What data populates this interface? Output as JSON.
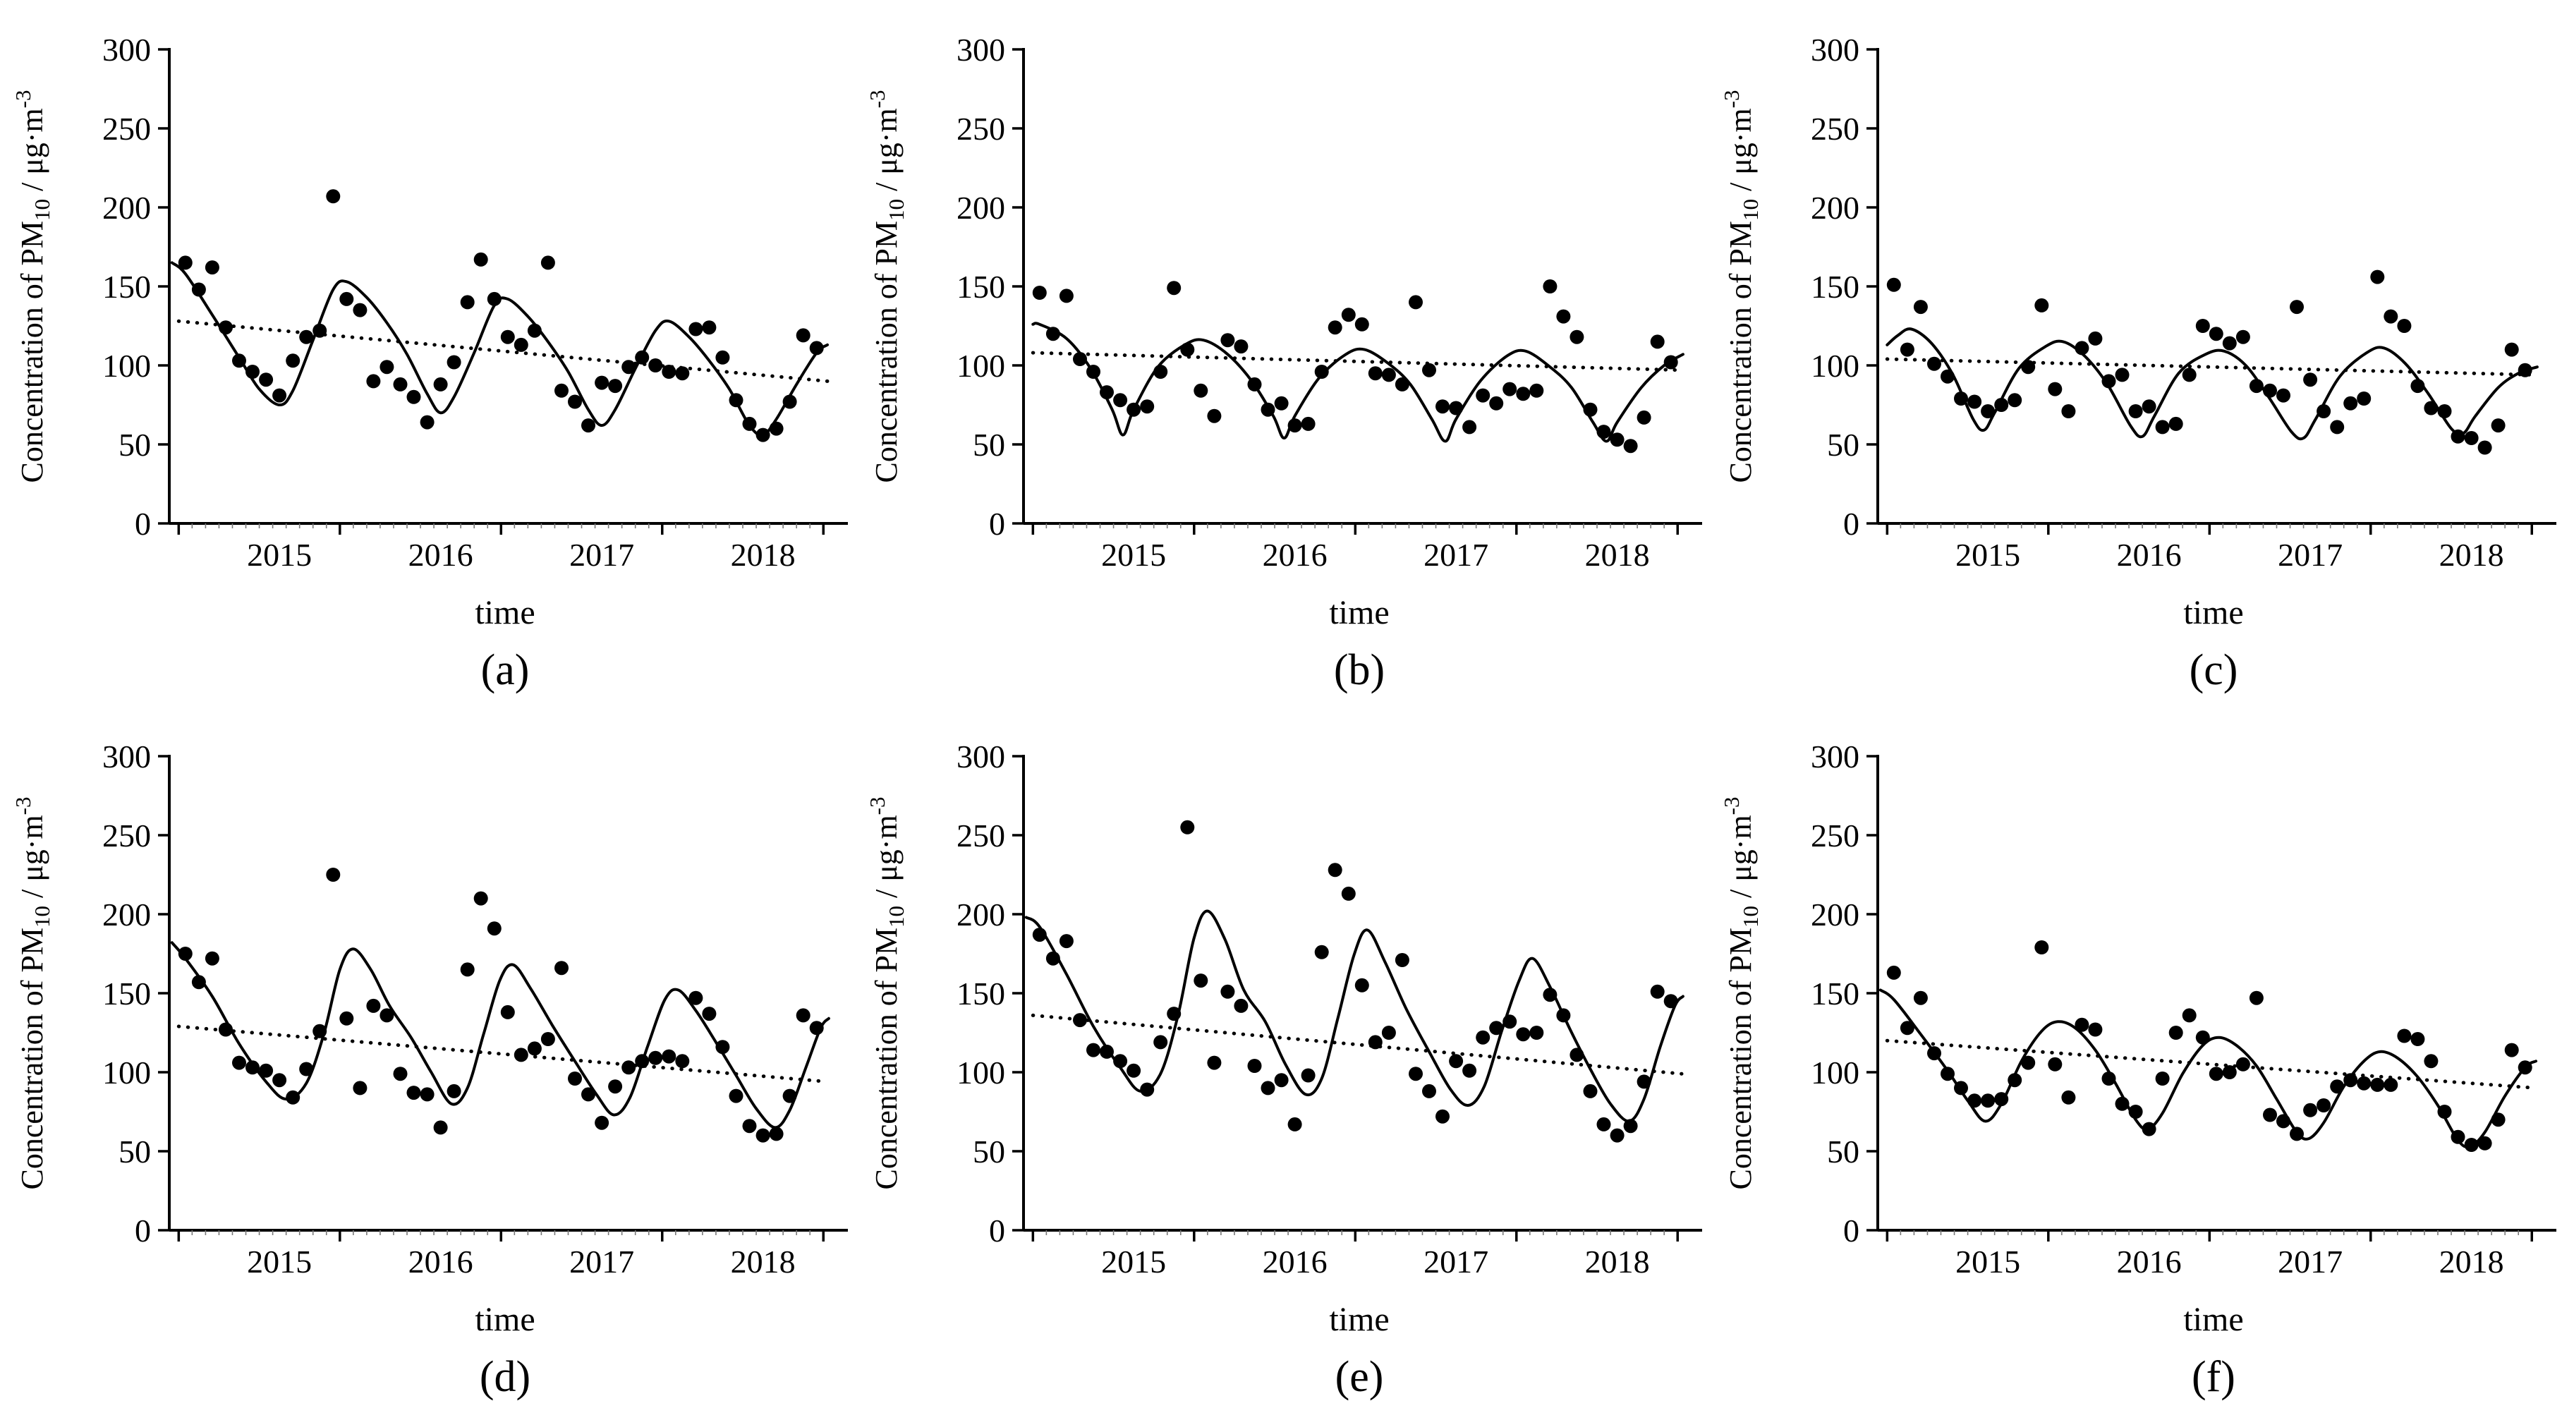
{
  "figure": {
    "background": "#ffffff",
    "ink": "#000000",
    "minor_tick_color": "#777777",
    "xlabel": "time",
    "ylabel_parts": {
      "pre": "Concentration of PM",
      "sub": "10",
      "mid": " / μg·m",
      "sup": "-3"
    },
    "yticks": [
      0,
      50,
      100,
      150,
      200,
      250,
      300
    ],
    "ylim": [
      0,
      300
    ],
    "year_labels": [
      "2015",
      "2016",
      "2017",
      "2018"
    ],
    "grid": "off",
    "legend": "none"
  },
  "chart_data": [
    {
      "type": "scatter",
      "panel_label": "(a)",
      "x_unit": "monthly, Jan 2015 – Dec 2018 (index 0–47)",
      "ylabel": "Concentration of PM10 / μg·m-3",
      "xlabel": "time",
      "points": [
        165,
        148,
        162,
        124,
        103,
        96,
        91,
        81,
        103,
        118,
        122,
        207,
        142,
        135,
        90,
        99,
        88,
        80,
        64,
        88,
        102,
        140,
        167,
        142,
        118,
        113,
        122,
        165,
        84,
        77,
        62,
        89,
        87,
        99,
        105,
        100,
        96,
        95,
        123,
        124,
        105,
        78,
        63,
        56,
        60,
        77,
        119,
        111
      ],
      "trend_line": {
        "start": 128,
        "end": 90
      },
      "fit_curve": [
        [
          -1,
          165
        ],
        [
          0,
          158
        ],
        [
          2,
          132
        ],
        [
          4,
          105
        ],
        [
          5.5,
          85
        ],
        [
          7,
          75
        ],
        [
          8,
          84
        ],
        [
          9.5,
          116
        ],
        [
          11,
          148
        ],
        [
          12,
          153
        ],
        [
          13.5,
          143
        ],
        [
          15,
          127
        ],
        [
          16.5,
          107
        ],
        [
          18,
          82
        ],
        [
          19,
          70
        ],
        [
          20,
          80
        ],
        [
          21.5,
          108
        ],
        [
          23,
          138
        ],
        [
          24,
          142
        ],
        [
          25.5,
          131
        ],
        [
          27,
          115
        ],
        [
          28.5,
          96
        ],
        [
          30,
          72
        ],
        [
          31,
          62
        ],
        [
          32,
          72
        ],
        [
          33.5,
          98
        ],
        [
          35,
          122
        ],
        [
          36,
          128
        ],
        [
          37.5,
          118
        ],
        [
          39,
          103
        ],
        [
          40.5,
          85
        ],
        [
          42,
          62
        ],
        [
          43,
          56
        ],
        [
          44,
          66
        ],
        [
          45.5,
          88
        ],
        [
          47,
          108
        ],
        [
          47.8,
          113
        ]
      ]
    },
    {
      "type": "scatter",
      "panel_label": "(b)",
      "x_unit": "monthly, Jan 2015 – Dec 2018 (index 0–47)",
      "ylabel": "Concentration of PM10 / μg·m-3",
      "xlabel": "time",
      "points": [
        146,
        120,
        144,
        104,
        96,
        83,
        78,
        72,
        74,
        96,
        149,
        110,
        84,
        68,
        116,
        112,
        88,
        72,
        76,
        62,
        63,
        96,
        124,
        132,
        126,
        95,
        94,
        88,
        140,
        97,
        74,
        73,
        61,
        81,
        76,
        85,
        82,
        84,
        150,
        131,
        118,
        72,
        58,
        53,
        49,
        67,
        115,
        102
      ],
      "trend_line": {
        "start": 108,
        "end": 97
      },
      "fit_curve": [
        [
          -0.5,
          126
        ],
        [
          0,
          126
        ],
        [
          2,
          117
        ],
        [
          3.8,
          98
        ],
        [
          5.4,
          72
        ],
        [
          6.2,
          56
        ],
        [
          7,
          72
        ],
        [
          8.8,
          99
        ],
        [
          10.8,
          113
        ],
        [
          12.2,
          116
        ],
        [
          14,
          107
        ],
        [
          15.8,
          90
        ],
        [
          17.4,
          68
        ],
        [
          18.2,
          54
        ],
        [
          19,
          68
        ],
        [
          20.8,
          92
        ],
        [
          22.8,
          107
        ],
        [
          24.2,
          110
        ],
        [
          26,
          101
        ],
        [
          27.6,
          88
        ],
        [
          29.2,
          66
        ],
        [
          30.2,
          52
        ],
        [
          31,
          66
        ],
        [
          32.8,
          90
        ],
        [
          34.8,
          106
        ],
        [
          36.2,
          109
        ],
        [
          38,
          99
        ],
        [
          39.6,
          86
        ],
        [
          41.2,
          64
        ],
        [
          42.2,
          52
        ],
        [
          43,
          64
        ],
        [
          44.8,
          86
        ],
        [
          46.5,
          100
        ],
        [
          47.9,
          107
        ]
      ]
    },
    {
      "type": "scatter",
      "panel_label": "(c)",
      "x_unit": "monthly, Jan 2015 – Dec 2018 (index 0–47)",
      "ylabel": "Concentration of PM10 / μg·m-3",
      "xlabel": "time",
      "points": [
        151,
        110,
        137,
        101,
        93,
        79,
        77,
        71,
        75,
        78,
        99,
        138,
        85,
        71,
        111,
        117,
        90,
        94,
        71,
        74,
        61,
        63,
        94,
        125,
        120,
        114,
        118,
        87,
        84,
        81,
        137,
        91,
        71,
        61,
        76,
        79,
        156,
        131,
        125,
        87,
        73,
        71,
        55,
        54,
        48,
        62,
        110,
        97
      ],
      "trend_line": {
        "start": 104,
        "end": 94
      },
      "fit_curve": [
        [
          -0.5,
          113
        ],
        [
          0.3,
          119
        ],
        [
          1.3,
          123
        ],
        [
          2.8,
          114
        ],
        [
          4.4,
          94
        ],
        [
          5.9,
          66
        ],
        [
          6.7,
          59
        ],
        [
          7.5,
          70
        ],
        [
          9.3,
          98
        ],
        [
          11.3,
          112
        ],
        [
          12.6,
          115
        ],
        [
          14.2,
          106
        ],
        [
          15.9,
          88
        ],
        [
          17.6,
          62
        ],
        [
          18.5,
          55
        ],
        [
          19.4,
          68
        ],
        [
          21.2,
          95
        ],
        [
          23.2,
          107
        ],
        [
          24.6,
          109
        ],
        [
          26.2,
          100
        ],
        [
          27.9,
          80
        ],
        [
          29.6,
          58
        ],
        [
          30.5,
          54
        ],
        [
          31.4,
          66
        ],
        [
          33.2,
          93
        ],
        [
          35.2,
          108
        ],
        [
          36.5,
          111
        ],
        [
          38.1,
          101
        ],
        [
          39.8,
          82
        ],
        [
          41.5,
          60
        ],
        [
          42.4,
          57
        ],
        [
          43.3,
          68
        ],
        [
          45,
          86
        ],
        [
          46.5,
          95
        ],
        [
          47.9,
          99
        ]
      ]
    },
    {
      "type": "scatter",
      "panel_label": "(d)",
      "x_unit": "monthly, Jan 2015 – Dec 2018 (index 0–47)",
      "ylabel": "Concentration of PM10 / μg·m-3",
      "xlabel": "time",
      "points": [
        175,
        157,
        172,
        127,
        106,
        103,
        101,
        95,
        84,
        102,
        126,
        225,
        134,
        90,
        142,
        136,
        99,
        87,
        86,
        65,
        88,
        165,
        210,
        191,
        138,
        111,
        115,
        121,
        166,
        96,
        86,
        68,
        91,
        103,
        107,
        109,
        110,
        107,
        147,
        137,
        116,
        85,
        66,
        60,
        61,
        85,
        136,
        128
      ],
      "trend_line": {
        "start": 129,
        "end": 94
      },
      "fit_curve": [
        [
          -1,
          182
        ],
        [
          0,
          172
        ],
        [
          2,
          148
        ],
        [
          4,
          118
        ],
        [
          6,
          94
        ],
        [
          7.5,
          83
        ],
        [
          9,
          93
        ],
        [
          10.3,
          124
        ],
        [
          11.5,
          165
        ],
        [
          12.5,
          178
        ],
        [
          13.8,
          165
        ],
        [
          15.2,
          142
        ],
        [
          16.8,
          122
        ],
        [
          18.3,
          100
        ],
        [
          19.8,
          80
        ],
        [
          21,
          90
        ],
        [
          22.2,
          124
        ],
        [
          23.4,
          158
        ],
        [
          24.4,
          168
        ],
        [
          25.7,
          153
        ],
        [
          27.3,
          130
        ],
        [
          29,
          107
        ],
        [
          30.6,
          86
        ],
        [
          31.9,
          73
        ],
        [
          33.1,
          84
        ],
        [
          34.4,
          116
        ],
        [
          35.7,
          146
        ],
        [
          36.7,
          152
        ],
        [
          38,
          139
        ],
        [
          39.5,
          119
        ],
        [
          41,
          98
        ],
        [
          42.5,
          77
        ],
        [
          43.9,
          65
        ],
        [
          45,
          76
        ],
        [
          46.2,
          103
        ],
        [
          47.3,
          128
        ],
        [
          47.9,
          134
        ]
      ]
    },
    {
      "type": "scatter",
      "panel_label": "(e)",
      "x_unit": "monthly, Jan 2015 – Dec 2018 (index 0–47)",
      "ylabel": "Concentration of PM10 / μg·m-3",
      "xlabel": "time",
      "points": [
        187,
        172,
        183,
        133,
        114,
        113,
        107,
        101,
        89,
        119,
        137,
        255,
        158,
        106,
        151,
        142,
        104,
        90,
        95,
        67,
        98,
        176,
        228,
        213,
        155,
        119,
        125,
        171,
        99,
        88,
        72,
        107,
        101,
        122,
        128,
        132,
        124,
        125,
        149,
        136,
        111,
        88,
        67,
        60,
        66,
        94,
        151,
        145
      ],
      "trend_line": {
        "start": 136,
        "end": 99
      },
      "fit_curve": [
        [
          -1,
          198
        ],
        [
          0,
          192
        ],
        [
          2,
          162
        ],
        [
          4,
          129
        ],
        [
          6,
          103
        ],
        [
          7.5,
          88
        ],
        [
          9,
          99
        ],
        [
          10.3,
          136
        ],
        [
          11.5,
          185
        ],
        [
          12.5,
          202
        ],
        [
          13.8,
          184
        ],
        [
          15.2,
          152
        ],
        [
          16.8,
          132
        ],
        [
          18.3,
          105
        ],
        [
          19.8,
          86
        ],
        [
          21,
          96
        ],
        [
          22.2,
          134
        ],
        [
          23.4,
          174
        ],
        [
          24.4,
          190
        ],
        [
          25.7,
          170
        ],
        [
          27.3,
          140
        ],
        [
          29,
          113
        ],
        [
          30.6,
          89
        ],
        [
          31.9,
          79
        ],
        [
          33.1,
          91
        ],
        [
          34.4,
          126
        ],
        [
          35.7,
          158
        ],
        [
          36.7,
          172
        ],
        [
          38,
          154
        ],
        [
          39.5,
          127
        ],
        [
          41,
          102
        ],
        [
          42.5,
          80
        ],
        [
          43.9,
          69
        ],
        [
          45,
          83
        ],
        [
          46.2,
          116
        ],
        [
          47.3,
          142
        ],
        [
          47.9,
          148
        ]
      ]
    },
    {
      "type": "scatter",
      "panel_label": "(f)",
      "x_unit": "monthly, Jan 2015 – Dec 2018 (index 0–47)",
      "ylabel": "Concentration of PM10 / μg·m-3",
      "xlabel": "time",
      "points": [
        163,
        128,
        147,
        112,
        99,
        90,
        82,
        82,
        83,
        95,
        106,
        179,
        105,
        84,
        130,
        127,
        96,
        80,
        75,
        64,
        96,
        125,
        136,
        122,
        99,
        100,
        105,
        147,
        73,
        69,
        61,
        76,
        79,
        91,
        95,
        93,
        92,
        92,
        123,
        121,
        107,
        75,
        59,
        54,
        55,
        70,
        114,
        103
      ],
      "trend_line": {
        "start": 120,
        "end": 90
      },
      "fit_curve": [
        [
          -1,
          152
        ],
        [
          0,
          146
        ],
        [
          2,
          124
        ],
        [
          4,
          101
        ],
        [
          5.5,
          82
        ],
        [
          6.8,
          69
        ],
        [
          8,
          80
        ],
        [
          9.5,
          107
        ],
        [
          11,
          126
        ],
        [
          12.2,
          132
        ],
        [
          13.5,
          128
        ],
        [
          15,
          114
        ],
        [
          16.5,
          93
        ],
        [
          18,
          70
        ],
        [
          18.9,
          64
        ],
        [
          20,
          74
        ],
        [
          21.5,
          99
        ],
        [
          23,
          117
        ],
        [
          24.2,
          122
        ],
        [
          25.5,
          117
        ],
        [
          27,
          104
        ],
        [
          28.5,
          83
        ],
        [
          30,
          62
        ],
        [
          30.9,
          58
        ],
        [
          32,
          68
        ],
        [
          33.5,
          91
        ],
        [
          35,
          107
        ],
        [
          36.2,
          113
        ],
        [
          37.5,
          109
        ],
        [
          39,
          97
        ],
        [
          40.5,
          79
        ],
        [
          42,
          57
        ],
        [
          42.9,
          53
        ],
        [
          44,
          62
        ],
        [
          45.5,
          85
        ],
        [
          47,
          103
        ],
        [
          47.8,
          107
        ]
      ]
    }
  ]
}
